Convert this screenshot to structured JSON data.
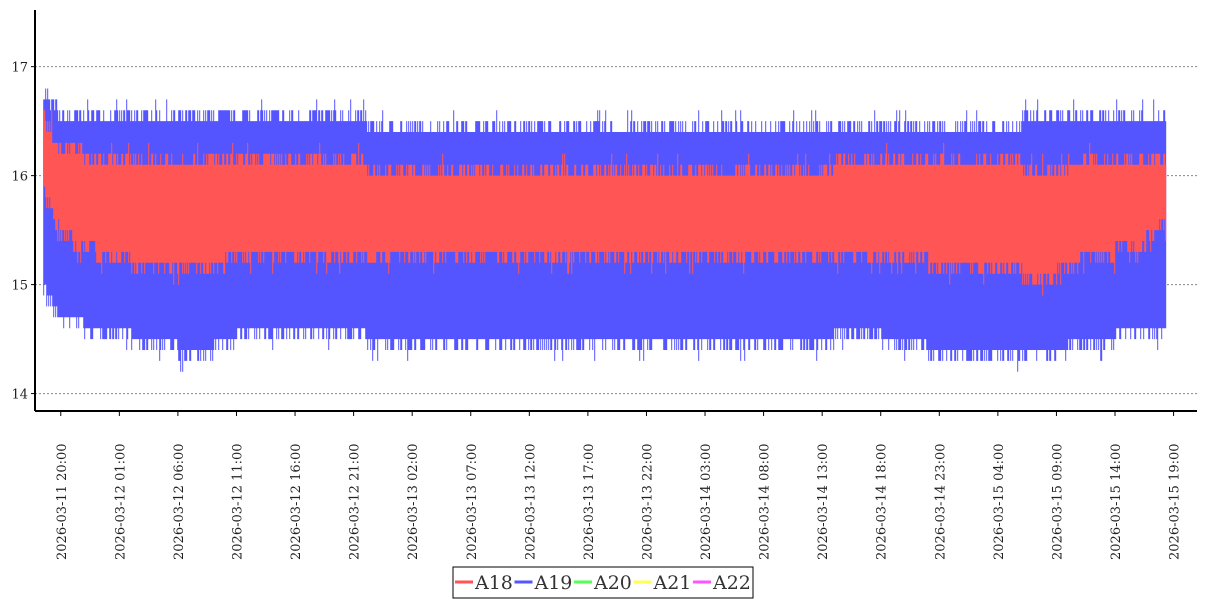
{
  "chart_data": {
    "type": "line",
    "title": "",
    "xlabel": "",
    "ylabel": "",
    "ylim": [
      13.84,
      17.52
    ],
    "yticks": [
      14,
      15,
      16,
      17
    ],
    "grid": "horizontal dotted",
    "x_unit": "hours since 2026-03-11 20:00",
    "xlim": [
      -2.2,
      97
    ],
    "xticks": [
      0,
      5,
      10,
      15,
      20,
      25,
      30,
      35,
      40,
      45,
      50,
      55,
      60,
      65,
      70,
      75,
      80,
      85,
      90,
      95
    ],
    "xtick_labels": [
      "2026-03-11  20:00",
      "2026-03-12  01:00",
      "2026-03-12  06:00",
      "2026-03-12  11:00",
      "2026-03-12  16:00",
      "2026-03-12  21:00",
      "2026-03-13  02:00",
      "2026-03-13  07:00",
      "2026-03-13  12:00",
      "2026-03-13  17:00",
      "2026-03-13  22:00",
      "2026-03-14  03:00",
      "2026-03-14  08:00",
      "2026-03-14  13:00",
      "2026-03-14  18:00",
      "2026-03-14  23:00",
      "2026-03-15  04:00",
      "2026-03-15  09:00",
      "2026-03-15  14:00",
      "2026-03-15  19:00"
    ],
    "legend_position": "bottom-center",
    "x": [
      -1.5,
      0,
      4,
      8,
      12,
      16,
      20,
      24,
      28,
      32,
      36,
      40,
      44,
      48,
      52,
      56,
      60,
      64,
      68,
      72,
      76,
      80,
      84,
      88,
      92,
      94.3
    ],
    "series": [
      {
        "name": "A18",
        "color": "#ff5555",
        "high": [
          16.6,
          16.3,
          16.2,
          16.2,
          16.2,
          16.2,
          16.2,
          16.2,
          16.1,
          16.1,
          16.1,
          16.1,
          16.1,
          16.1,
          16.1,
          16.1,
          16.1,
          16.1,
          16.2,
          16.2,
          16.2,
          16.2,
          16.1,
          16.2,
          16.2,
          16.2
        ],
        "low": [
          15.8,
          15.4,
          15.2,
          15.1,
          15.1,
          15.2,
          15.2,
          15.2,
          15.2,
          15.2,
          15.2,
          15.2,
          15.2,
          15.2,
          15.2,
          15.2,
          15.2,
          15.2,
          15.2,
          15.2,
          15.1,
          15.1,
          15.0,
          15.2,
          15.3,
          15.5
        ]
      },
      {
        "name": "A19",
        "color": "#5555ff",
        "high": [
          16.8,
          16.6,
          16.6,
          16.6,
          16.6,
          16.6,
          16.6,
          16.6,
          16.5,
          16.5,
          16.5,
          16.5,
          16.5,
          16.5,
          16.5,
          16.5,
          16.5,
          16.5,
          16.5,
          16.5,
          16.5,
          16.5,
          16.6,
          16.6,
          16.6,
          16.6
        ],
        "low": [
          14.9,
          14.6,
          14.5,
          14.4,
          14.3,
          14.5,
          14.5,
          14.5,
          14.4,
          14.4,
          14.4,
          14.4,
          14.4,
          14.4,
          14.4,
          14.4,
          14.4,
          14.4,
          14.5,
          14.4,
          14.3,
          14.3,
          14.3,
          14.4,
          14.5,
          14.5
        ]
      },
      {
        "name": "A20",
        "color": "#55ff55",
        "high": [],
        "low": []
      },
      {
        "name": "A21",
        "color": "#ffff55",
        "high": [],
        "low": []
      },
      {
        "name": "A22",
        "color": "#ff55ff",
        "high": [],
        "low": []
      }
    ]
  }
}
